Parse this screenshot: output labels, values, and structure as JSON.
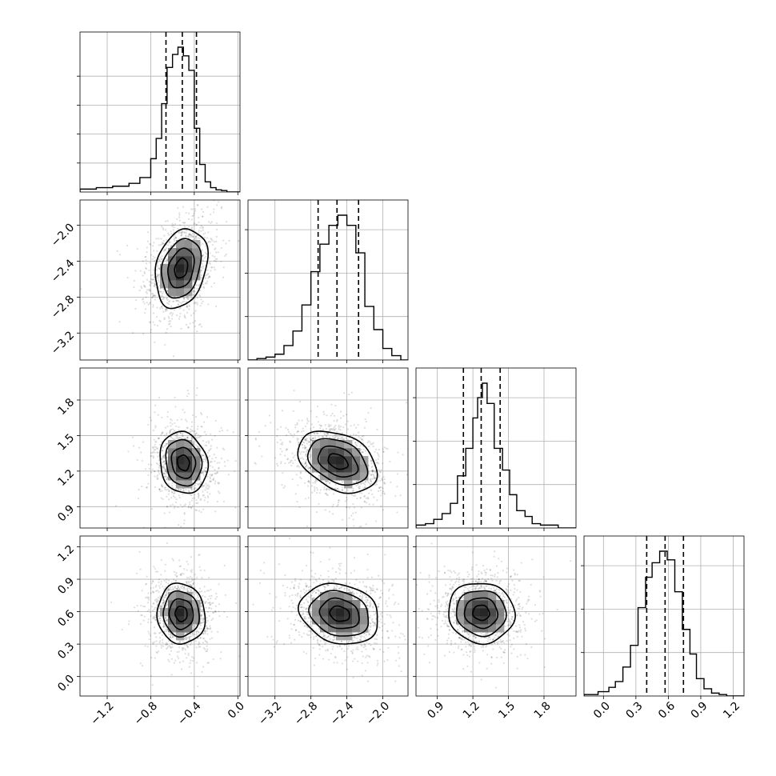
{
  "chart_data": {
    "type": "corner",
    "grid": true,
    "n_params": 4,
    "params": [
      {
        "index": 0,
        "range": [
          -1.45,
          0.02
        ],
        "ticks": [
          -1.2,
          -0.8,
          -0.4,
          0.0
        ],
        "tick_labels": [
          "−1.2",
          "−0.8",
          "−0.4",
          "0.0"
        ],
        "quantiles": [
          -0.66,
          -0.51,
          -0.38
        ],
        "hist": {
          "edges": [
            -1.45,
            -1.3,
            -1.15,
            -1.0,
            -0.9,
            -0.8,
            -0.75,
            -0.7,
            -0.65,
            -0.6,
            -0.55,
            -0.5,
            -0.45,
            -0.4,
            -0.35,
            -0.3,
            -0.25,
            -0.2,
            -0.15,
            -0.1,
            -0.05,
            0.02
          ],
          "counts": [
            0.02,
            0.03,
            0.04,
            0.06,
            0.1,
            0.23,
            0.37,
            0.61,
            0.86,
            0.95,
            1.0,
            0.94,
            0.84,
            0.44,
            0.19,
            0.07,
            0.03,
            0.015,
            0.01,
            0.0,
            0.0
          ]
        },
        "hist_ticks": [
          0.2,
          0.4,
          0.6,
          0.8
        ]
      },
      {
        "index": 1,
        "range": [
          -3.5,
          -1.72
        ],
        "ticks": [
          -3.2,
          -2.8,
          -2.4,
          -2.0
        ],
        "tick_labels": [
          "−3.2",
          "−2.8",
          "−2.4",
          "−2.0"
        ],
        "quantiles": [
          -2.72,
          -2.51,
          -2.27
        ],
        "hist": {
          "edges": [
            -3.5,
            -3.4,
            -3.3,
            -3.2,
            -3.1,
            -3.0,
            -2.9,
            -2.8,
            -2.7,
            -2.6,
            -2.5,
            -2.4,
            -2.3,
            -2.2,
            -2.1,
            -2.0,
            -1.9,
            -1.8,
            -1.72
          ],
          "counts": [
            0.0,
            0.01,
            0.02,
            0.04,
            0.1,
            0.2,
            0.38,
            0.61,
            0.8,
            0.93,
            1.0,
            0.93,
            0.74,
            0.37,
            0.21,
            0.08,
            0.03,
            0.0
          ]
        },
        "hist_ticks": [
          0.3,
          0.6,
          0.9
        ]
      },
      {
        "index": 2,
        "range": [
          0.72,
          2.07
        ],
        "ticks": [
          0.9,
          1.2,
          1.5,
          1.8
        ],
        "tick_labels": [
          "0.9",
          "1.2",
          "1.5",
          "1.8"
        ],
        "quantiles": [
          1.12,
          1.27,
          1.43
        ],
        "hist": {
          "edges": [
            0.72,
            0.8,
            0.87,
            0.94,
            1.01,
            1.07,
            1.14,
            1.2,
            1.24,
            1.28,
            1.32,
            1.38,
            1.45,
            1.51,
            1.57,
            1.64,
            1.7,
            1.77,
            1.84,
            1.92,
            2.0,
            2.07
          ],
          "counts": [
            0.02,
            0.03,
            0.06,
            0.1,
            0.17,
            0.36,
            0.55,
            0.76,
            0.9,
            1.0,
            0.86,
            0.55,
            0.4,
            0.23,
            0.12,
            0.08,
            0.03,
            0.02,
            0.02,
            0.0,
            0.0
          ]
        },
        "hist_ticks": [
          0.3,
          0.6,
          0.9
        ]
      },
      {
        "index": 3,
        "range": [
          -0.18,
          1.3
        ],
        "ticks": [
          0.0,
          0.3,
          0.6,
          0.9,
          1.2
        ],
        "tick_labels": [
          "0.0",
          "0.3",
          "0.6",
          "0.9",
          "1.2"
        ],
        "quantiles": [
          0.4,
          0.57,
          0.74
        ],
        "hist": {
          "edges": [
            -0.18,
            -0.05,
            0.05,
            0.11,
            0.18,
            0.25,
            0.32,
            0.39,
            0.45,
            0.52,
            0.59,
            0.66,
            0.73,
            0.8,
            0.86,
            0.93,
            1.0,
            1.07,
            1.14,
            1.3
          ],
          "counts": [
            0.01,
            0.03,
            0.06,
            0.1,
            0.2,
            0.35,
            0.61,
            0.82,
            0.92,
            1.0,
            0.94,
            0.72,
            0.46,
            0.29,
            0.12,
            0.05,
            0.02,
            0.01,
            0.0
          ]
        },
        "hist_ticks": [
          0.3,
          0.6,
          0.9
        ]
      }
    ],
    "pairs": [
      {
        "row": 1,
        "col": 0,
        "center": [
          -0.52,
          -2.48
        ],
        "sigma": [
          0.12,
          0.22
        ],
        "rho": 0.25
      },
      {
        "row": 2,
        "col": 0,
        "center": [
          -0.5,
          1.27
        ],
        "sigma": [
          0.11,
          0.13
        ],
        "rho": -0.12
      },
      {
        "row": 2,
        "col": 1,
        "center": [
          -2.5,
          1.28
        ],
        "sigma": [
          0.22,
          0.13
        ],
        "rho": -0.35
      },
      {
        "row": 3,
        "col": 0,
        "center": [
          -0.52,
          0.58
        ],
        "sigma": [
          0.11,
          0.14
        ],
        "rho": -0.05
      },
      {
        "row": 3,
        "col": 1,
        "center": [
          -2.48,
          0.58
        ],
        "sigma": [
          0.22,
          0.14
        ],
        "rho": -0.18
      },
      {
        "row": 3,
        "col": 2,
        "center": [
          1.27,
          0.59
        ],
        "sigma": [
          0.14,
          0.14
        ],
        "rho": -0.05
      }
    ],
    "contour_levels_sigma": [
      0.5,
      1.0,
      1.5,
      2.0
    ]
  }
}
